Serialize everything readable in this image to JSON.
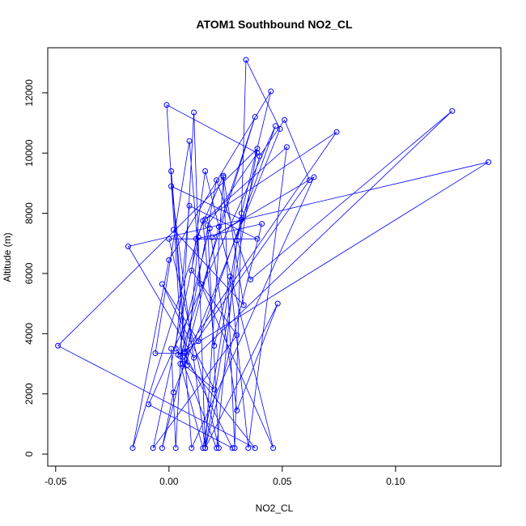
{
  "chart_data": {
    "type": "line",
    "title": "ATOM1 Southbound NO2_CL",
    "xlabel": "NO2_CL",
    "ylabel": "Altitude (m)",
    "xlim": [
      -0.0535,
      0.1465
    ],
    "ylim": [
      -400,
      13500
    ],
    "xticks": [
      -0.05,
      0.0,
      0.05,
      0.1
    ],
    "xtick_labels": [
      "-0.05",
      "0.00",
      "0.05",
      "0.10"
    ],
    "yticks": [
      0,
      2000,
      4000,
      6000,
      8000,
      10000,
      12000
    ],
    "ytick_labels": [
      "0",
      "2000",
      "4000",
      "6000",
      "8000",
      "10000",
      "12000"
    ],
    "grid": false,
    "markers": "open-circle",
    "color": "#0000ff",
    "series": [
      {
        "x": [
          0.001,
          0.003,
          0.011,
          0.016,
          0.024,
          0.029,
          0.034,
          0.049,
          0.002,
          -0.003,
          0.022,
          0.038,
          0.005,
          0.021,
          0.03,
          0.04,
          0.051,
          0.062,
          0.005,
          0.015,
          0.032,
          0.045,
          0.0,
          -0.016,
          0.015,
          0.02,
          0.027,
          0.035,
          0.052,
          0.016,
          0.074,
          0.007,
          0.021,
          0.036,
          0.125,
          0.011,
          -0.018,
          0.141,
          0.004,
          0.018,
          0.03,
          0.048,
          0.016,
          0.039,
          -0.049,
          0.038,
          0.003,
          0.009,
          0.039,
          0.0,
          0.022,
          0.017,
          0.039,
          -0.001,
          0.006,
          0.02,
          -0.003,
          0.013,
          0.047,
          -0.009,
          0.028,
          0.007,
          -0.006,
          0.009,
          0.014,
          0.046,
          0.016,
          0.01,
          0.03,
          -0.007,
          0.013,
          0.008,
          0.001,
          0.01,
          0.064,
          0.019,
          0.032,
          0.001,
          0.016,
          0.041,
          0.012,
          0.024,
          0.033,
          0.002
        ],
        "y": [
          3500,
          200,
          11350,
          200,
          9200,
          200,
          13100,
          10800,
          2050,
          200,
          7550,
          11200,
          3250,
          200,
          7100,
          9900,
          11100,
          9100,
          3000,
          200,
          8000,
          12050,
          6450,
          200,
          7750,
          3600,
          5900,
          200,
          10200,
          7800,
          10700,
          3400,
          9100,
          5800,
          11400,
          3200,
          6900,
          9700,
          3300,
          7500,
          1450,
          5000,
          200,
          10150,
          3600,
          200,
          3500,
          8250,
          7150,
          7150,
          200,
          7600,
          10000,
          11600,
          3000,
          2150,
          5650,
          3750,
          10900,
          1650,
          200,
          3350,
          3350,
          10400,
          5650,
          200,
          9400,
          6100,
          3950,
          200,
          7200,
          2950,
          9400,
          200,
          9200,
          7200,
          7800,
          8900,
          200,
          7650,
          7150,
          9250,
          4950,
          7450
        ]
      }
    ]
  }
}
